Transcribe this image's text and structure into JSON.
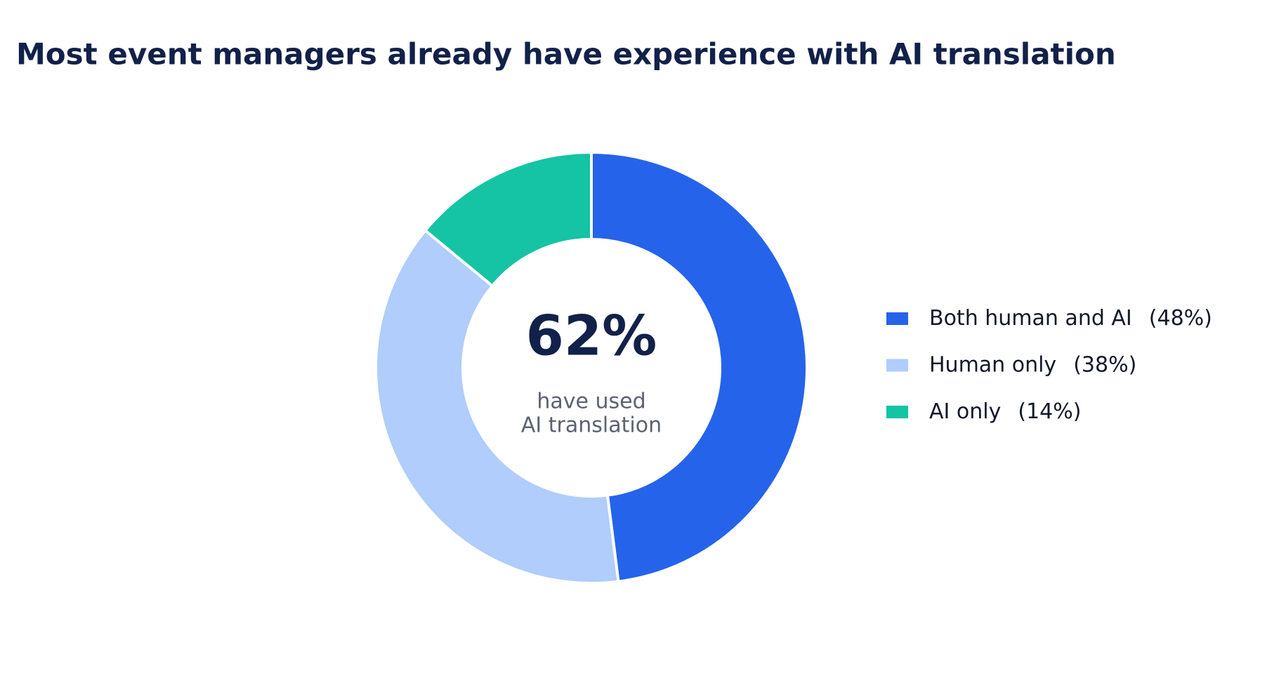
{
  "chart_data": {
    "type": "donut",
    "title": "Most event managers already have experience with AI translation",
    "center_text": "62%",
    "center_caption": [
      "have used",
      "AI translation"
    ],
    "categories": [
      "Both human and AI",
      "Human only",
      "AI only"
    ],
    "values": [
      48,
      38,
      14
    ],
    "value_labels": [
      "(48%)",
      "(38%)",
      "(14%)"
    ],
    "colors": [
      "#2563eb",
      "#b0cdfb",
      "#14c4a4"
    ],
    "legend": "right"
  }
}
